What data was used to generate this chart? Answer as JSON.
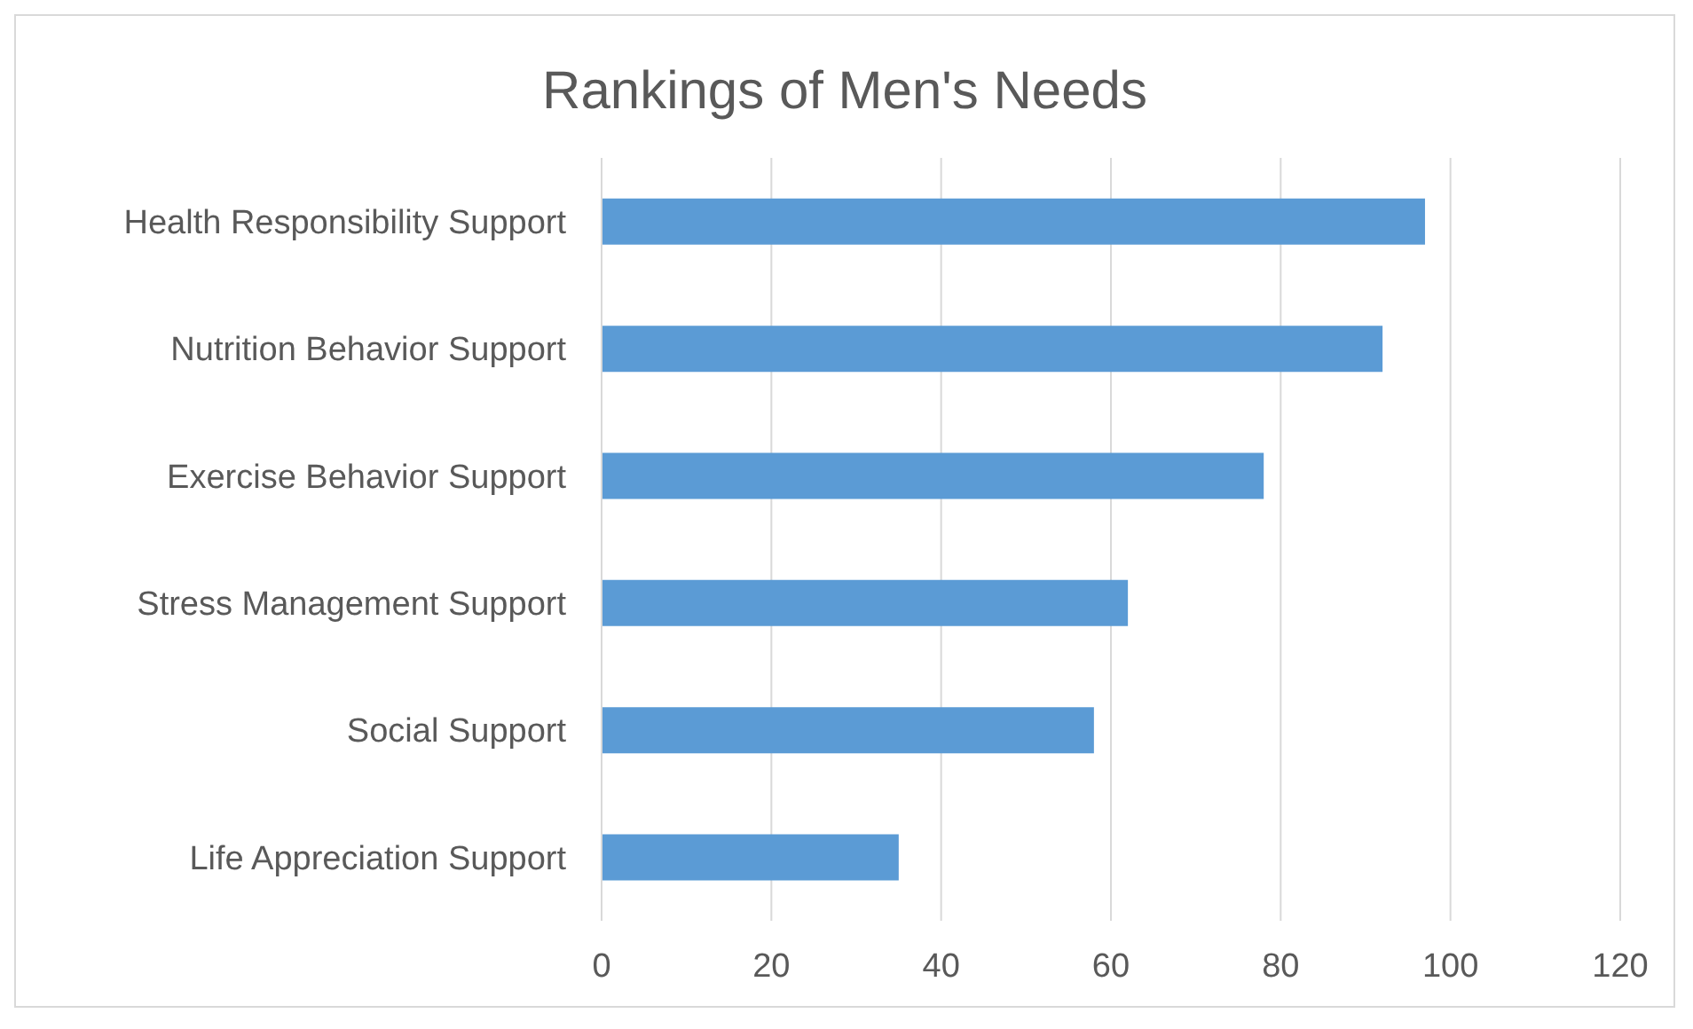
{
  "chart_data": {
    "type": "bar",
    "orientation": "horizontal",
    "title": "Rankings of Men's Needs",
    "categories": [
      "Health Responsibility Support",
      "Nutrition Behavior Support",
      "Exercise Behavior Support",
      "Stress Management Support",
      "Social Support",
      "Life Appreciation Support"
    ],
    "values": [
      97,
      92,
      78,
      62,
      58,
      35
    ],
    "color": "#5b9bd5",
    "xlim": [
      0,
      120
    ],
    "xticks": [
      0,
      20,
      40,
      60,
      80,
      100,
      120
    ],
    "grid": "x"
  }
}
